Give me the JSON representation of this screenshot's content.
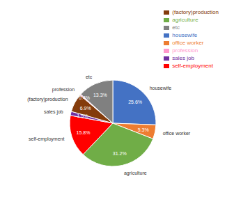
{
  "chart_data": {
    "type": "pie",
    "categories": [
      "housewife",
      "office worker",
      "agriculture",
      "self-employment",
      "sales job",
      "(factory)production",
      "profession",
      "etc"
    ],
    "values": [
      25.6,
      5.3,
      31.2,
      15.8,
      1.5,
      6.9,
      0.4,
      13.3
    ],
    "value_labels": [
      "25.6%",
      "5.3%",
      "31.2%",
      "15.8%",
      "1.5%",
      "6.9%",
      "0.4%",
      "13.3%"
    ],
    "colors": [
      "#4472c4",
      "#ed7d31",
      "#70ad47",
      "#ff0000",
      "#7030a0",
      "#843c0c",
      "#ff99cc",
      "#808080"
    ],
    "data_labels": true,
    "legend": "upper right"
  }
}
